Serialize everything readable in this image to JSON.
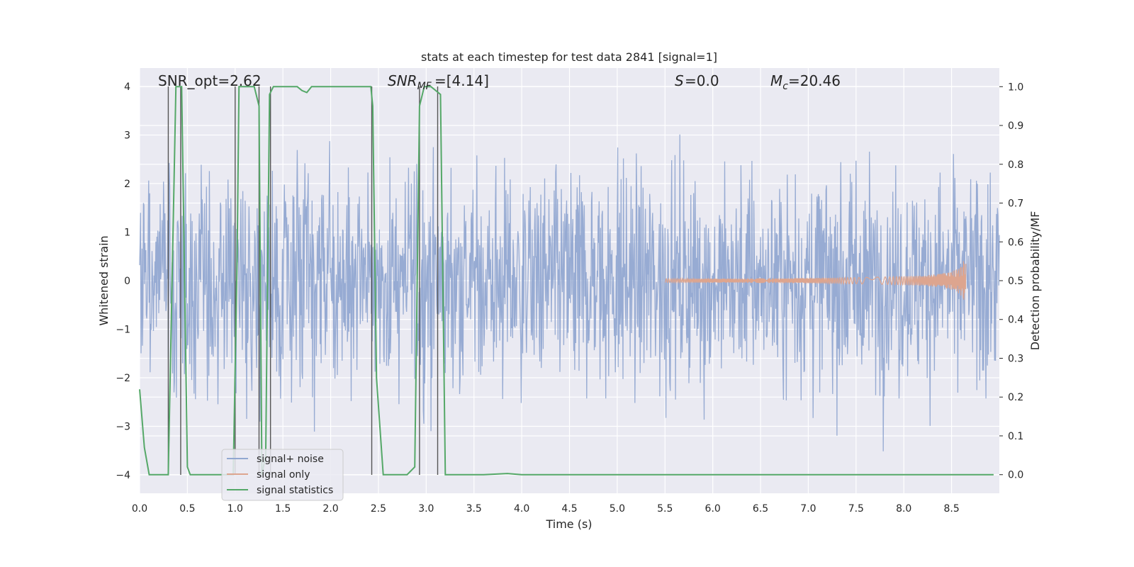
{
  "chart_data": {
    "type": "line",
    "title": "stats at each timestep for test data 2841 [signal=1]",
    "xlabel": "Time (s)",
    "ylabel": "Whitened strain",
    "y2label": "Detection probability/MF",
    "xlim": [
      0.0,
      9.0
    ],
    "ylim": [
      -4.38,
      4.38
    ],
    "y2lim": [
      -0.048,
      1.048
    ],
    "xticks": [
      "0.0",
      "0.5",
      "1.0",
      "1.5",
      "2.0",
      "2.5",
      "3.0",
      "3.5",
      "4.0",
      "4.5",
      "5.0",
      "5.5",
      "6.0",
      "6.5",
      "7.0",
      "7.5",
      "8.0",
      "8.5"
    ],
    "yticks": [
      "4",
      "3",
      "2",
      "1",
      "0",
      "−1",
      "−2",
      "−3",
      "−4"
    ],
    "y2ticks": [
      "1.0",
      "0.9",
      "0.8",
      "0.7",
      "0.6",
      "0.5",
      "0.4",
      "0.3",
      "0.2",
      "0.1",
      "0.0"
    ],
    "annotations": {
      "snr_opt": "SNR_opt=2.62",
      "snr_mf": "=[4.14]",
      "s_value": "=0.0",
      "mc_value": "=20.46"
    },
    "legend": {
      "location": "lower-left",
      "entries": [
        "signal+ noise",
        "signal only",
        "signal statistics"
      ]
    },
    "noise_series": {
      "name": "signal+ noise",
      "color": "#92a8d1",
      "amplitude_std": 1.1,
      "t_range": [
        0.0,
        9.0
      ]
    },
    "signal_series": {
      "name": "signal only",
      "color": "#dda58f",
      "chirp_end_time": 8.65,
      "peak_amplitude": 0.62
    },
    "stats_series": {
      "name": "signal statistics",
      "color": "#55a868",
      "x": [
        0.0,
        0.05,
        0.1,
        0.25,
        0.3,
        0.38,
        0.44,
        0.5,
        0.53,
        0.6,
        0.9,
        0.98,
        1.02,
        1.04,
        1.08,
        1.15,
        1.2,
        1.25,
        1.28,
        1.32,
        1.36,
        1.4,
        1.45,
        1.55,
        1.65,
        1.7,
        1.75,
        1.8,
        1.9,
        2.0,
        2.42,
        2.44,
        2.48,
        2.55,
        2.6,
        2.8,
        2.88,
        2.93,
        2.98,
        3.05,
        3.15,
        3.2,
        3.25,
        3.4,
        3.6,
        3.85,
        4.0,
        5.0,
        6.0,
        7.0,
        8.0,
        8.94
      ],
      "values": [
        0.22,
        0.07,
        0.0,
        0.0,
        0.0,
        1.0,
        1.0,
        0.02,
        0.0,
        0.0,
        0.0,
        0.0,
        0.55,
        1.0,
        1.0,
        1.0,
        1.0,
        0.95,
        0.0,
        0.05,
        0.98,
        1.0,
        1.0,
        1.0,
        1.0,
        0.99,
        0.985,
        1.0,
        1.0,
        1.0,
        1.0,
        0.95,
        0.25,
        0.0,
        0.0,
        0.0,
        0.02,
        0.95,
        1.0,
        1.0,
        0.98,
        0.0,
        0.0,
        0.0,
        0.0,
        0.003,
        0.0,
        0.0,
        0.0,
        0.0,
        0.0,
        0.0
      ]
    },
    "vertical_lines_x": [
      0.3,
      0.43,
      1.0,
      1.25,
      1.37,
      2.43,
      2.93,
      3.12
    ]
  }
}
